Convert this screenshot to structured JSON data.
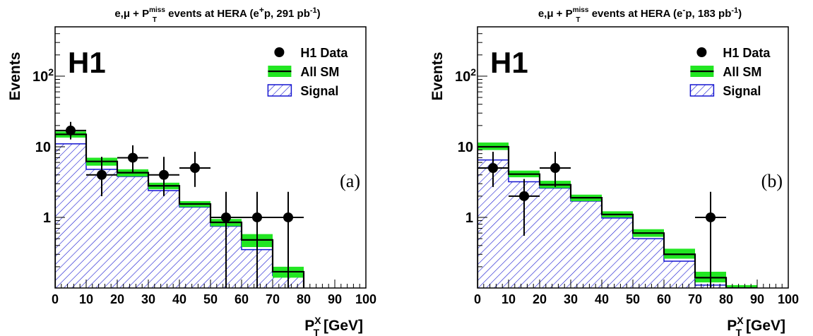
{
  "chart_data": [
    {
      "type": "histogram",
      "title": {
        "base": "e,μ + P",
        "sup": "miss",
        "sub": "T",
        "rest": " events at HERA (e",
        "beam_sup": "+",
        "lumi": "p, 291 pb",
        "lumi_sup": "-1",
        "close": ")"
      },
      "experiment": "H1",
      "panel_label": "(a)",
      "ylabel": "Events",
      "xlabel": {
        "base": "P",
        "sup": "X",
        "sub": "T",
        "unit": " [GeV]"
      },
      "xlim": [
        0,
        100
      ],
      "ylim": [
        0.1,
        500
      ],
      "yscale": "log",
      "x_ticks": [
        "0",
        "10",
        "20",
        "30",
        "40",
        "50",
        "60",
        "70",
        "80",
        "90",
        "100"
      ],
      "y_ticks": [
        {
          "value": 1,
          "label": "1"
        },
        {
          "value": 10,
          "label": "10"
        },
        {
          "value": 100,
          "base": "10",
          "sup": "2"
        }
      ],
      "bin_edges": [
        0,
        10,
        20,
        30,
        40,
        50,
        60,
        70,
        80
      ],
      "series": [
        {
          "name": "H1 Data",
          "kind": "points",
          "x": [
            5,
            15,
            25,
            35,
            45,
            55,
            65,
            75
          ],
          "y": [
            17,
            4,
            7,
            4,
            5,
            1,
            1,
            1
          ],
          "y_low": [
            12.7,
            2.0,
            4.2,
            2.0,
            2.7,
            0.1,
            0.1,
            0.1
          ],
          "y_high": [
            22.5,
            7.2,
            10.5,
            7.2,
            8.5,
            2.3,
            2.3,
            2.3
          ]
        },
        {
          "name": "All SM",
          "kind": "band",
          "values": [
            15,
            6.2,
            4.3,
            2.8,
            1.55,
            0.85,
            0.48,
            0.17
          ],
          "lower": [
            13.5,
            5.4,
            3.8,
            2.5,
            1.4,
            0.75,
            0.38,
            0.14
          ],
          "upper": [
            16.5,
            7.0,
            4.8,
            3.1,
            1.7,
            0.95,
            0.58,
            0.2
          ]
        },
        {
          "name": "Signal",
          "kind": "hatched",
          "values": [
            11,
            4.8,
            3.8,
            2.4,
            1.4,
            0.75,
            0.35,
            0.15
          ]
        }
      ],
      "legend": "top-right"
    },
    {
      "type": "histogram",
      "title": {
        "base": "e,μ + P",
        "sup": "miss",
        "sub": "T",
        "rest": " events at HERA (e",
        "beam_sup": "-",
        "lumi": "p, 183 pb",
        "lumi_sup": "-1",
        "close": ")"
      },
      "experiment": "H1",
      "panel_label": "(b)",
      "ylabel": "Events",
      "xlabel": {
        "base": "P",
        "sup": "X",
        "sub": "T",
        "unit": " [GeV]"
      },
      "xlim": [
        0,
        100
      ],
      "ylim": [
        0.1,
        500
      ],
      "yscale": "log",
      "x_ticks": [
        "0",
        "10",
        "20",
        "30",
        "40",
        "50",
        "60",
        "70",
        "80",
        "90",
        "100"
      ],
      "y_ticks": [
        {
          "value": 1,
          "label": "1"
        },
        {
          "value": 10,
          "label": "10"
        },
        {
          "value": 100,
          "base": "10",
          "sup": "2"
        }
      ],
      "bin_edges": [
        0,
        10,
        20,
        30,
        40,
        50,
        60,
        70,
        80,
        90
      ],
      "series": [
        {
          "name": "H1 Data",
          "kind": "points",
          "x": [
            5,
            15,
            25,
            75
          ],
          "y": [
            5,
            2,
            5,
            1
          ],
          "y_low": [
            2.7,
            0.55,
            2.7,
            0.1
          ],
          "y_high": [
            8.5,
            3.5,
            8.5,
            2.3
          ]
        },
        {
          "name": "All SM",
          "kind": "band",
          "values": [
            10,
            4.1,
            2.9,
            1.9,
            1.1,
            0.6,
            0.3,
            0.14,
            0.1
          ],
          "lower": [
            9.0,
            3.7,
            2.6,
            1.7,
            1.0,
            0.53,
            0.26,
            0.12,
            0.1
          ],
          "upper": [
            11.5,
            4.6,
            3.3,
            2.1,
            1.22,
            0.68,
            0.36,
            0.17,
            0.11
          ]
        },
        {
          "name": "Signal",
          "kind": "hatched",
          "values": [
            6.5,
            3.2,
            2.6,
            1.7,
            0.98,
            0.5,
            0.24,
            0.11,
            0.1
          ]
        }
      ],
      "legend": "top-right"
    }
  ]
}
